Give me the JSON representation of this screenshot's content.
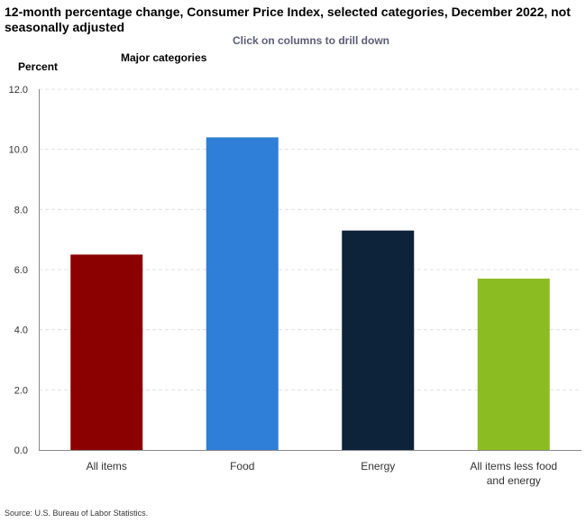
{
  "title": "12-month percentage change, Consumer Price Index, selected categories, December 2022, not seasonally adjusted",
  "drill_hint": "Click on columns to drill down",
  "subtitle": "Major categories",
  "source": "Source: U.S. Bureau of Labor Statistics.",
  "chart_data": {
    "type": "bar",
    "title": "12-month percentage change, Consumer Price Index, selected categories, December 2022, not seasonally adjusted",
    "subtitle": "Major categories",
    "xlabel": "",
    "ylabel": "Percent",
    "ylim": [
      0,
      12
    ],
    "yticks": [
      "0.0",
      "2.0",
      "4.0",
      "6.0",
      "8.0",
      "10.0",
      "12.0"
    ],
    "grid": true,
    "categories": [
      "All items",
      "Food",
      "Energy",
      "All items less food and energy"
    ],
    "values": [
      6.5,
      10.4,
      7.3,
      5.7
    ],
    "colors": [
      "#8b0000",
      "#2f7ed8",
      "#0d233a",
      "#8bbc21"
    ]
  }
}
